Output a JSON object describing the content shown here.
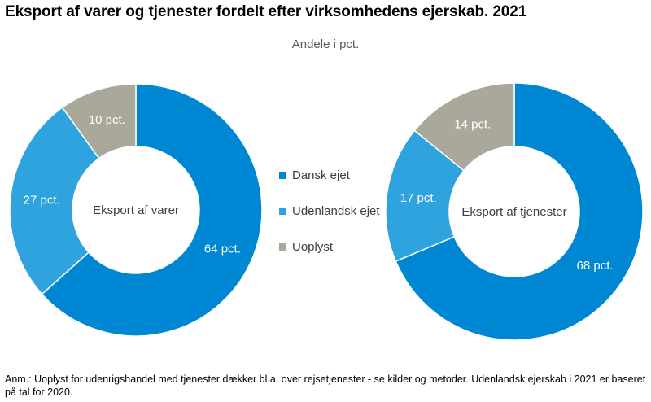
{
  "title": "Eksport af varer og tjenester fordelt efter virksomhedens ejerskab. 2021",
  "subtitle": "Andele i pct.",
  "footnote": "Anm.: Uoplyst for udenrigshandel med tjenester dækker bl.a. over rejsetjenester - se kilder og metoder. Udenlandsk ejerskab i 2021 er baseret på tal for 2020.",
  "colors": {
    "dansk": "#0087d4",
    "udenlandsk": "#2ea3de",
    "uoplyst": "#aaa89b"
  },
  "legend": [
    {
      "label": "Dansk ejet",
      "color": "#0087d4"
    },
    {
      "label": "Udenlandsk ejet",
      "color": "#2ea3de"
    },
    {
      "label": "Uoplyst",
      "color": "#aaa89b"
    }
  ],
  "chart_data": [
    {
      "type": "pie",
      "center_label": "Eksport af varer",
      "categories": [
        "Dansk ejet",
        "Udenlandsk ejet",
        "Uoplyst"
      ],
      "values": [
        64,
        27,
        10
      ],
      "data_labels": [
        "64 pct.",
        "27 pct.",
        "10 pct."
      ]
    },
    {
      "type": "pie",
      "center_label": "Eksport af tjenester",
      "categories": [
        "Dansk ejet",
        "Udenlandsk ejet",
        "Uoplyst"
      ],
      "values": [
        68,
        17,
        14
      ],
      "data_labels": [
        "68 pct.",
        "17 pct.",
        "14 pct."
      ]
    }
  ]
}
